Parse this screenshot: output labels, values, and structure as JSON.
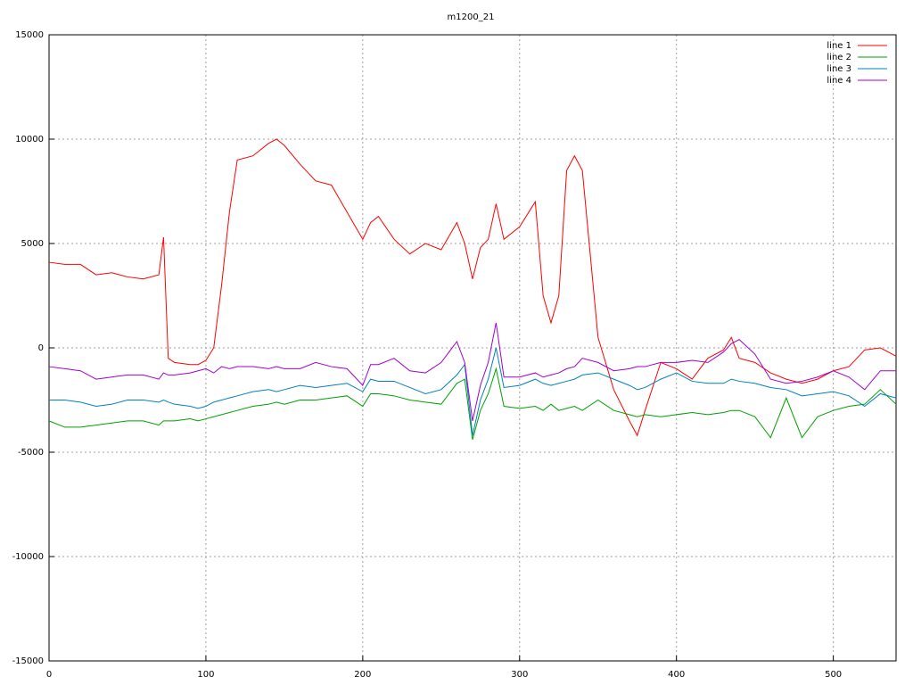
{
  "chart_data": {
    "type": "line",
    "title": "m1200_21",
    "x": [
      0,
      10,
      20,
      30,
      40,
      50,
      60,
      70,
      73,
      76,
      80,
      90,
      95,
      100,
      105,
      110,
      115,
      120,
      130,
      140,
      145,
      150,
      160,
      170,
      180,
      190,
      200,
      205,
      210,
      220,
      230,
      240,
      250,
      260,
      265,
      270,
      275,
      280,
      285,
      290,
      300,
      310,
      315,
      320,
      325,
      330,
      335,
      340,
      350,
      360,
      370,
      375,
      380,
      390,
      400,
      410,
      420,
      430,
      435,
      440,
      450,
      460,
      470,
      480,
      490,
      500,
      510,
      520,
      530,
      540
    ],
    "series": [
      {
        "name": "line 1",
        "color": "#ff0000",
        "values": [
          4100,
          4000,
          4000,
          3500,
          3600,
          3400,
          3300,
          3500,
          5300,
          -500,
          -700,
          -800,
          -800,
          -600,
          0,
          3000,
          6500,
          9000,
          9200,
          9800,
          10000,
          9700,
          8800,
          8000,
          7800,
          6500,
          5200,
          6000,
          6300,
          5200,
          4500,
          5000,
          4700,
          6000,
          5000,
          3300,
          4800,
          5200,
          6900,
          5200,
          5800,
          7000,
          2500,
          1200,
          2500,
          8500,
          9200,
          8500,
          500,
          -2000,
          -3500,
          -4200,
          -3000,
          -700,
          -1000,
          -1500,
          -500,
          -100,
          500,
          -500,
          -700,
          -1200,
          -1500,
          -1700,
          -1500,
          -1100,
          -900,
          -100,
          0,
          -400
        ]
      },
      {
        "name": "line 2",
        "color": "#00a000",
        "values": [
          -3500,
          -3800,
          -3800,
          -3700,
          -3600,
          -3500,
          -3500,
          -3700,
          -3500,
          -3500,
          -3500,
          -3400,
          -3500,
          -3400,
          -3300,
          -3200,
          -3100,
          -3000,
          -2800,
          -2700,
          -2600,
          -2700,
          -2500,
          -2500,
          -2400,
          -2300,
          -2800,
          -2200,
          -2200,
          -2300,
          -2500,
          -2600,
          -2700,
          -1700,
          -1500,
          -4400,
          -3000,
          -2200,
          -1000,
          -2800,
          -2900,
          -2800,
          -3000,
          -2700,
          -3000,
          -2900,
          -2800,
          -3000,
          -2500,
          -3000,
          -3200,
          -3300,
          -3200,
          -3300,
          -3200,
          -3100,
          -3200,
          -3100,
          -3000,
          -3000,
          -3300,
          -4300,
          -2400,
          -4300,
          -3300,
          -3000,
          -2800,
          -2700,
          -2000,
          -2700
        ]
      },
      {
        "name": "line 3",
        "color": "#0080c0",
        "values": [
          -2500,
          -2500,
          -2600,
          -2800,
          -2700,
          -2500,
          -2500,
          -2600,
          -2500,
          -2600,
          -2700,
          -2800,
          -2900,
          -2800,
          -2600,
          -2500,
          -2400,
          -2300,
          -2100,
          -2000,
          -2100,
          -2000,
          -1800,
          -1900,
          -1800,
          -1700,
          -2100,
          -1500,
          -1600,
          -1600,
          -1900,
          -2200,
          -2000,
          -1300,
          -800,
          -4200,
          -2500,
          -1500,
          0,
          -1900,
          -1800,
          -1500,
          -1700,
          -1800,
          -1700,
          -1600,
          -1500,
          -1300,
          -1200,
          -1500,
          -1800,
          -2000,
          -1900,
          -1500,
          -1200,
          -1600,
          -1700,
          -1700,
          -1500,
          -1600,
          -1700,
          -1900,
          -2000,
          -2300,
          -2200,
          -2100,
          -2300,
          -2800,
          -2200,
          -2400
        ]
      },
      {
        "name": "line 4",
        "color": "#a000d0",
        "values": [
          -900,
          -1000,
          -1100,
          -1500,
          -1400,
          -1300,
          -1300,
          -1500,
          -1200,
          -1300,
          -1300,
          -1200,
          -1100,
          -1000,
          -1200,
          -900,
          -1000,
          -900,
          -900,
          -1000,
          -900,
          -1000,
          -1000,
          -700,
          -900,
          -1000,
          -1800,
          -800,
          -800,
          -500,
          -1100,
          -1200,
          -700,
          300,
          -700,
          -3500,
          -1800,
          -700,
          1200,
          -1400,
          -1400,
          -1200,
          -1400,
          -1300,
          -1200,
          -1000,
          -900,
          -500,
          -700,
          -1100,
          -1000,
          -900,
          -900,
          -700,
          -700,
          -600,
          -700,
          -200,
          200,
          400,
          -300,
          -1500,
          -1700,
          -1600,
          -1400,
          -1100,
          -1400,
          -2000,
          -1100,
          -1100
        ]
      }
    ],
    "xlim": [
      0,
      540
    ],
    "ylim": [
      -15000,
      15000
    ],
    "xticks": [
      0,
      100,
      200,
      300,
      400,
      500
    ],
    "yticks": [
      -15000,
      -10000,
      -5000,
      0,
      5000,
      10000,
      15000
    ],
    "grid": true,
    "legend": "top-right"
  }
}
